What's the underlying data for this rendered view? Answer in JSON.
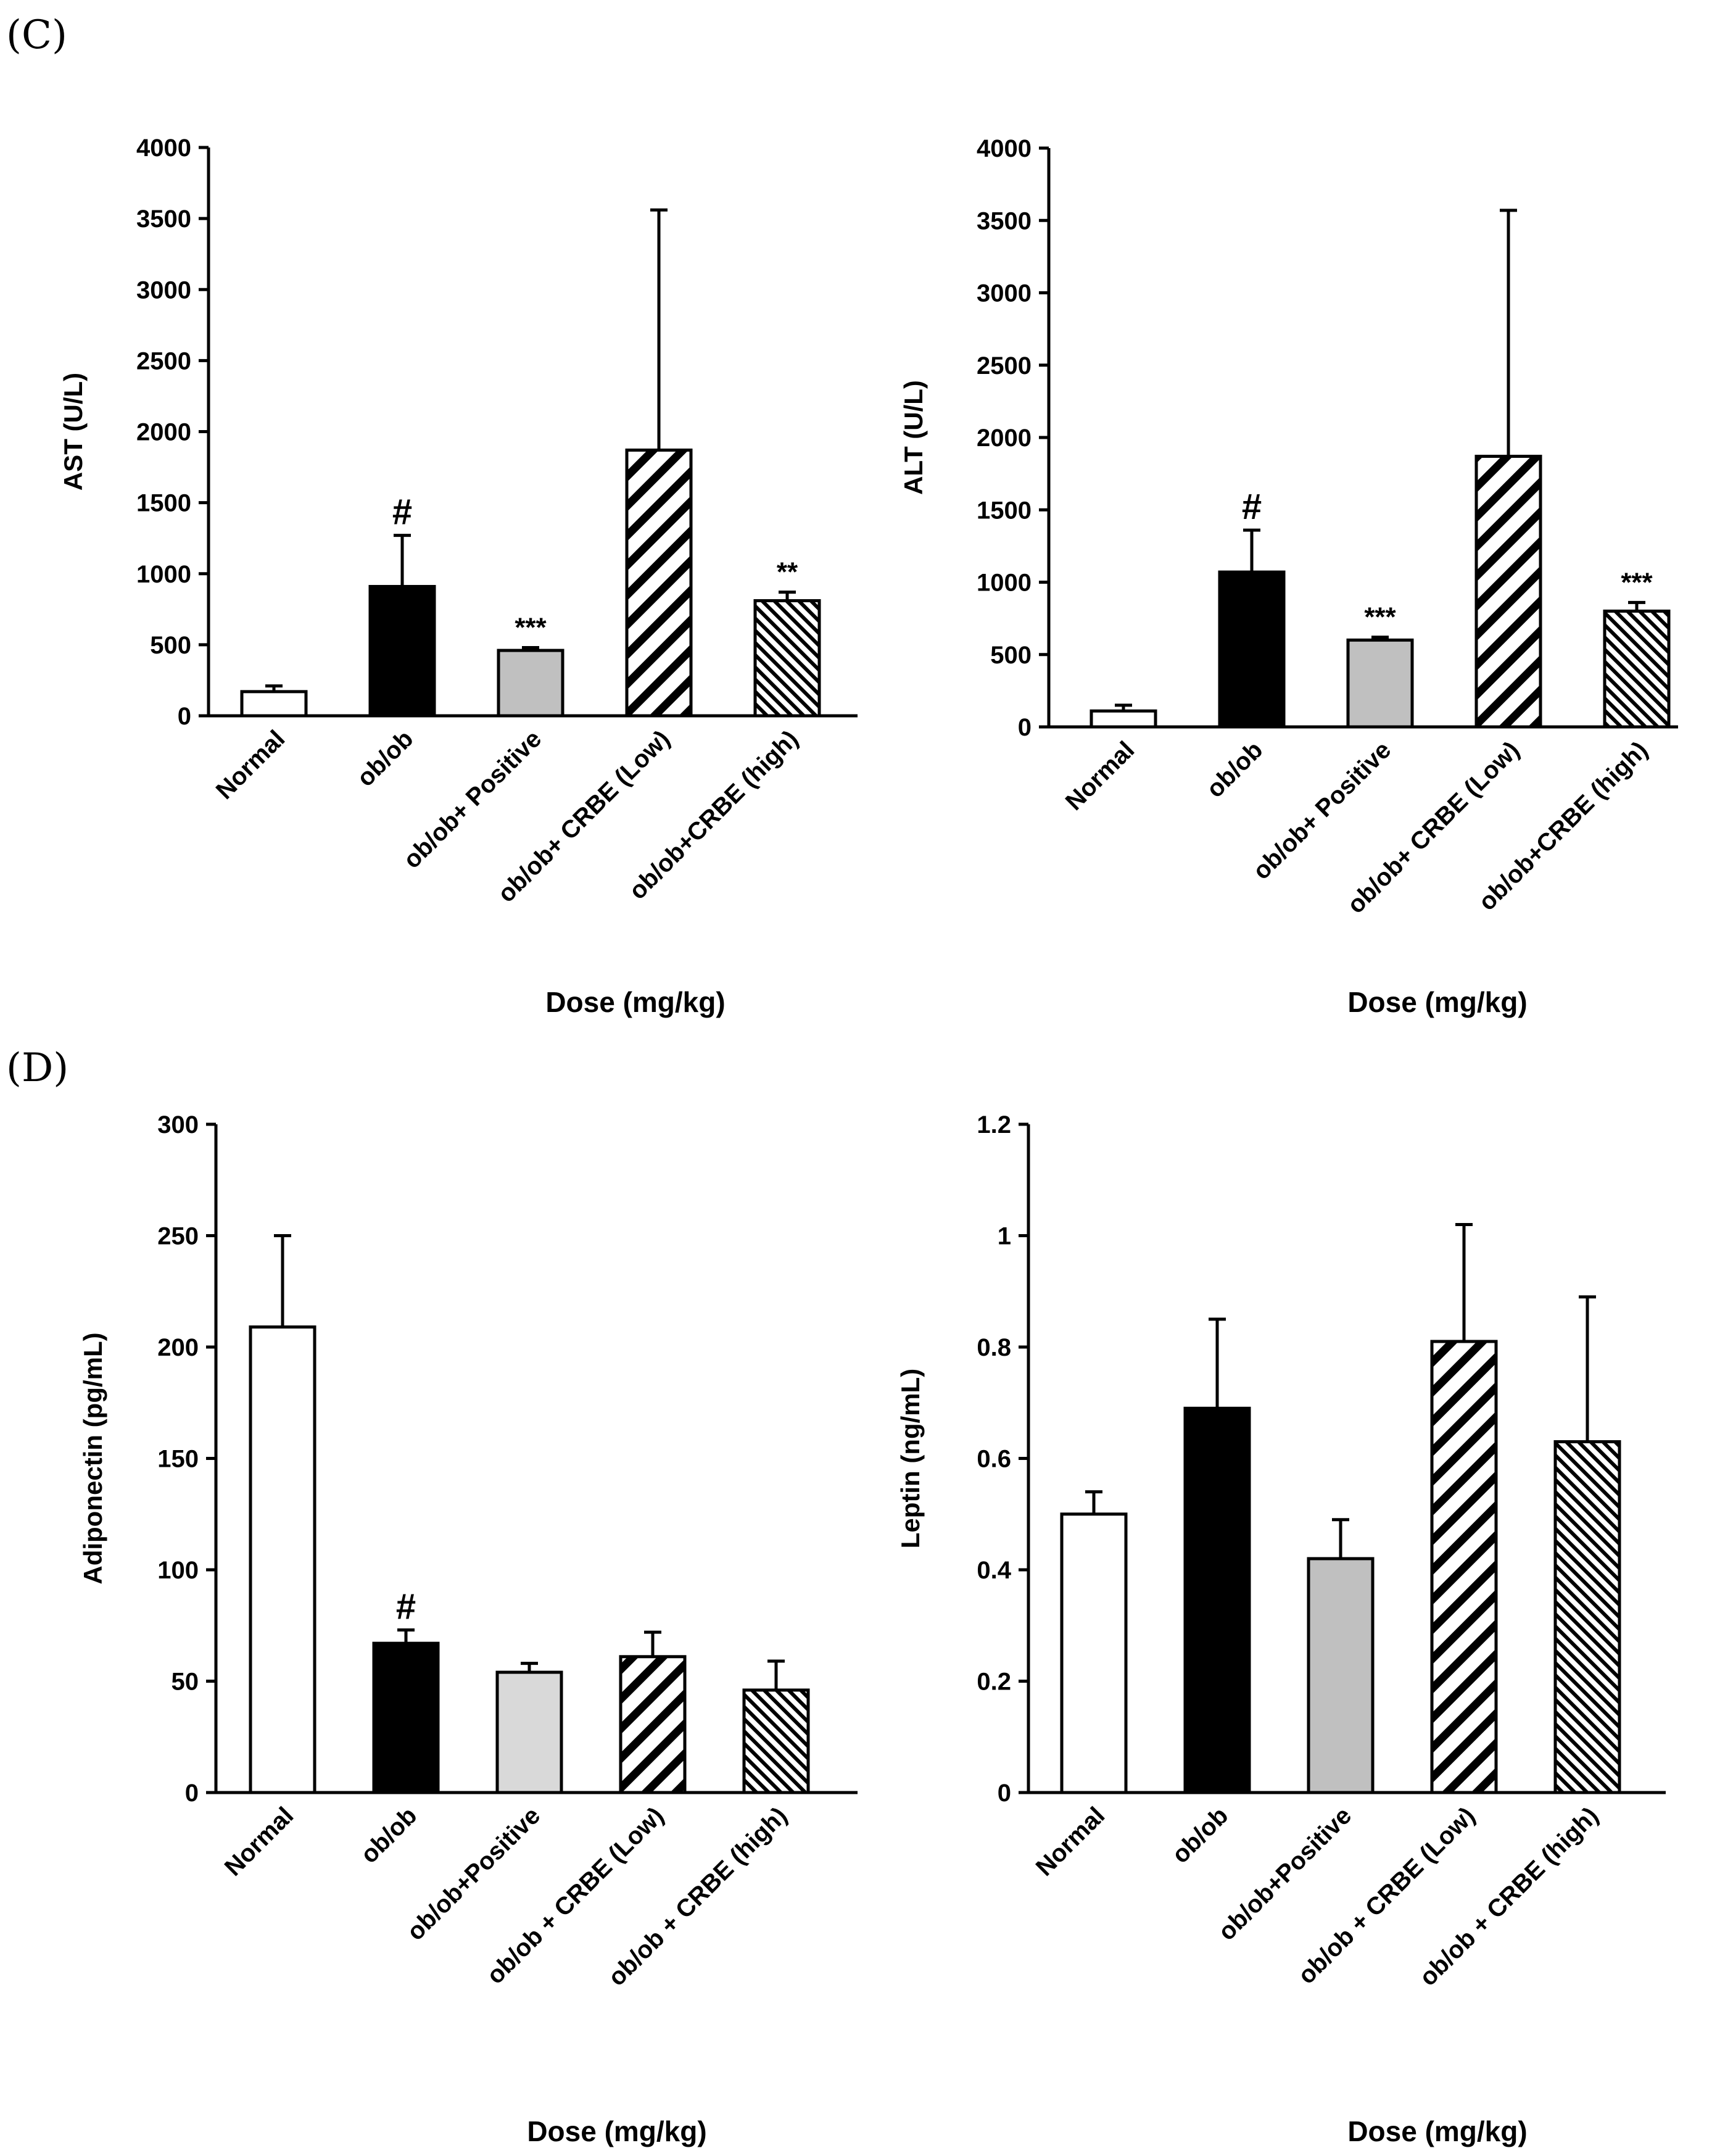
{
  "panel_labels": [
    "(C)",
    "(D)"
  ],
  "chart_data": [
    {
      "type": "bar",
      "title": "",
      "ylabel": "AST (U/L)",
      "xlabel": "Dose (mg/kg)",
      "ylim": [
        0,
        4000
      ],
      "yticks": [
        "0",
        "500",
        "1000",
        "1500",
        "2000",
        "2500",
        "3000",
        "3500",
        "4000"
      ],
      "categories": [
        "Normal",
        "ob/ob",
        "ob/ob+ Positive",
        "ob/ob+ CRBE (Low)",
        "ob/ob+CRBE (high)"
      ],
      "values": [
        170,
        910,
        460,
        1870,
        810
      ],
      "errors": [
        40,
        360,
        20,
        1690,
        60
      ],
      "annotations": [
        "",
        "#",
        "***",
        "",
        "**"
      ],
      "fills": [
        "white",
        "black",
        "gray",
        "hatch-wide",
        "hatch-dense"
      ]
    },
    {
      "type": "bar",
      "title": "",
      "ylabel": "ALT (U/L)",
      "xlabel": "Dose (mg/kg)",
      "ylim": [
        0,
        4000
      ],
      "yticks": [
        "0",
        "500",
        "1000",
        "1500",
        "2000",
        "2500",
        "3000",
        "3500",
        "4000"
      ],
      "categories": [
        "Normal",
        "ob/ob",
        "ob/ob+ Positive",
        "ob/ob+ CRBE (Low)",
        "ob/ob+CRBE (high)"
      ],
      "values": [
        110,
        1070,
        600,
        1870,
        800
      ],
      "errors": [
        40,
        290,
        20,
        1700,
        60
      ],
      "annotations": [
        "",
        "#",
        "***",
        "",
        "***"
      ],
      "fills": [
        "white",
        "black",
        "gray",
        "hatch-wide",
        "hatch-dense"
      ]
    },
    {
      "type": "bar",
      "title": "",
      "ylabel": "Adiponectin (pg/mL)",
      "xlabel": "Dose (mg/kg)",
      "ylim": [
        0,
        300
      ],
      "yticks": [
        "0",
        "50",
        "100",
        "150",
        "200",
        "250",
        "300"
      ],
      "categories": [
        "Normal",
        "ob/ob",
        "ob/ob+Positive",
        "ob/ob + CRBE (Low)",
        "ob/ob + CRBE (high)"
      ],
      "values": [
        209,
        67,
        54,
        61,
        46
      ],
      "errors": [
        41,
        6,
        4,
        11,
        13
      ],
      "annotations": [
        "",
        "#",
        "",
        "",
        ""
      ],
      "fills": [
        "white",
        "black",
        "gray-light",
        "hatch-wide",
        "hatch-dense"
      ]
    },
    {
      "type": "bar",
      "title": "",
      "ylabel": "Leptin (ng/mL)",
      "xlabel": "Dose (mg/kg)",
      "ylim": [
        0,
        1.2
      ],
      "yticks": [
        "0",
        "0.2",
        "0.4",
        "0.6",
        "0.8",
        "1",
        "1.2"
      ],
      "categories": [
        "Normal",
        "ob/ob",
        "ob/ob+Positive",
        "ob/ob + CRBE (Low)",
        "ob/ob + CRBE (high)"
      ],
      "values": [
        0.5,
        0.69,
        0.42,
        0.81,
        0.63
      ],
      "errors": [
        0.04,
        0.16,
        0.07,
        0.21,
        0.26
      ],
      "annotations": [
        "",
        "",
        "",
        "",
        ""
      ],
      "fills": [
        "white",
        "black",
        "gray",
        "hatch-wide",
        "hatch-dense"
      ]
    }
  ],
  "colors": {
    "white": "#ffffff",
    "black": "#000000",
    "gray": "#c0c0c0",
    "gray-light": "#d9d9d9"
  }
}
